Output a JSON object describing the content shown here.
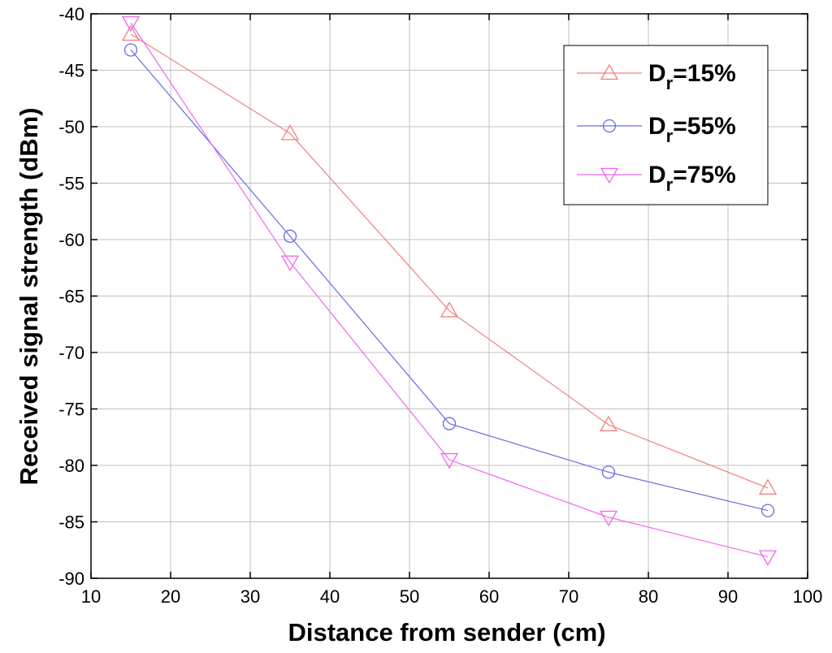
{
  "chart_data": {
    "type": "line",
    "title": "",
    "xlabel": "Distance from sender (cm)",
    "ylabel": "Received signal strength (dBm)",
    "xlim": [
      10,
      100
    ],
    "ylim": [
      -90,
      -40
    ],
    "xticks": [
      10,
      20,
      30,
      40,
      50,
      60,
      70,
      80,
      90,
      100
    ],
    "yticks": [
      -40,
      -45,
      -50,
      -55,
      -60,
      -65,
      -70,
      -75,
      -80,
      -85,
      -90
    ],
    "grid": true,
    "legend_position": "top-right",
    "x": [
      15,
      35,
      55,
      75,
      95
    ],
    "series": [
      {
        "label_main": "D",
        "label_sub": "r",
        "label_rest": "=15%",
        "color": "#f08080",
        "marker": "triangle-up",
        "values": [
          -41.8,
          -50.6,
          -66.3,
          -76.4,
          -82.0
        ]
      },
      {
        "label_main": "D",
        "label_sub": "r",
        "label_rest": "=55%",
        "color": "#6a6ae6",
        "marker": "circle",
        "values": [
          -43.2,
          -59.7,
          -76.3,
          -80.6,
          -84.0
        ]
      },
      {
        "label_main": "D",
        "label_sub": "r",
        "label_rest": "=75%",
        "color": "#ee66ee",
        "marker": "triangle-down",
        "values": [
          -40.8,
          -62.0,
          -79.5,
          -84.6,
          -88.1
        ]
      }
    ]
  }
}
